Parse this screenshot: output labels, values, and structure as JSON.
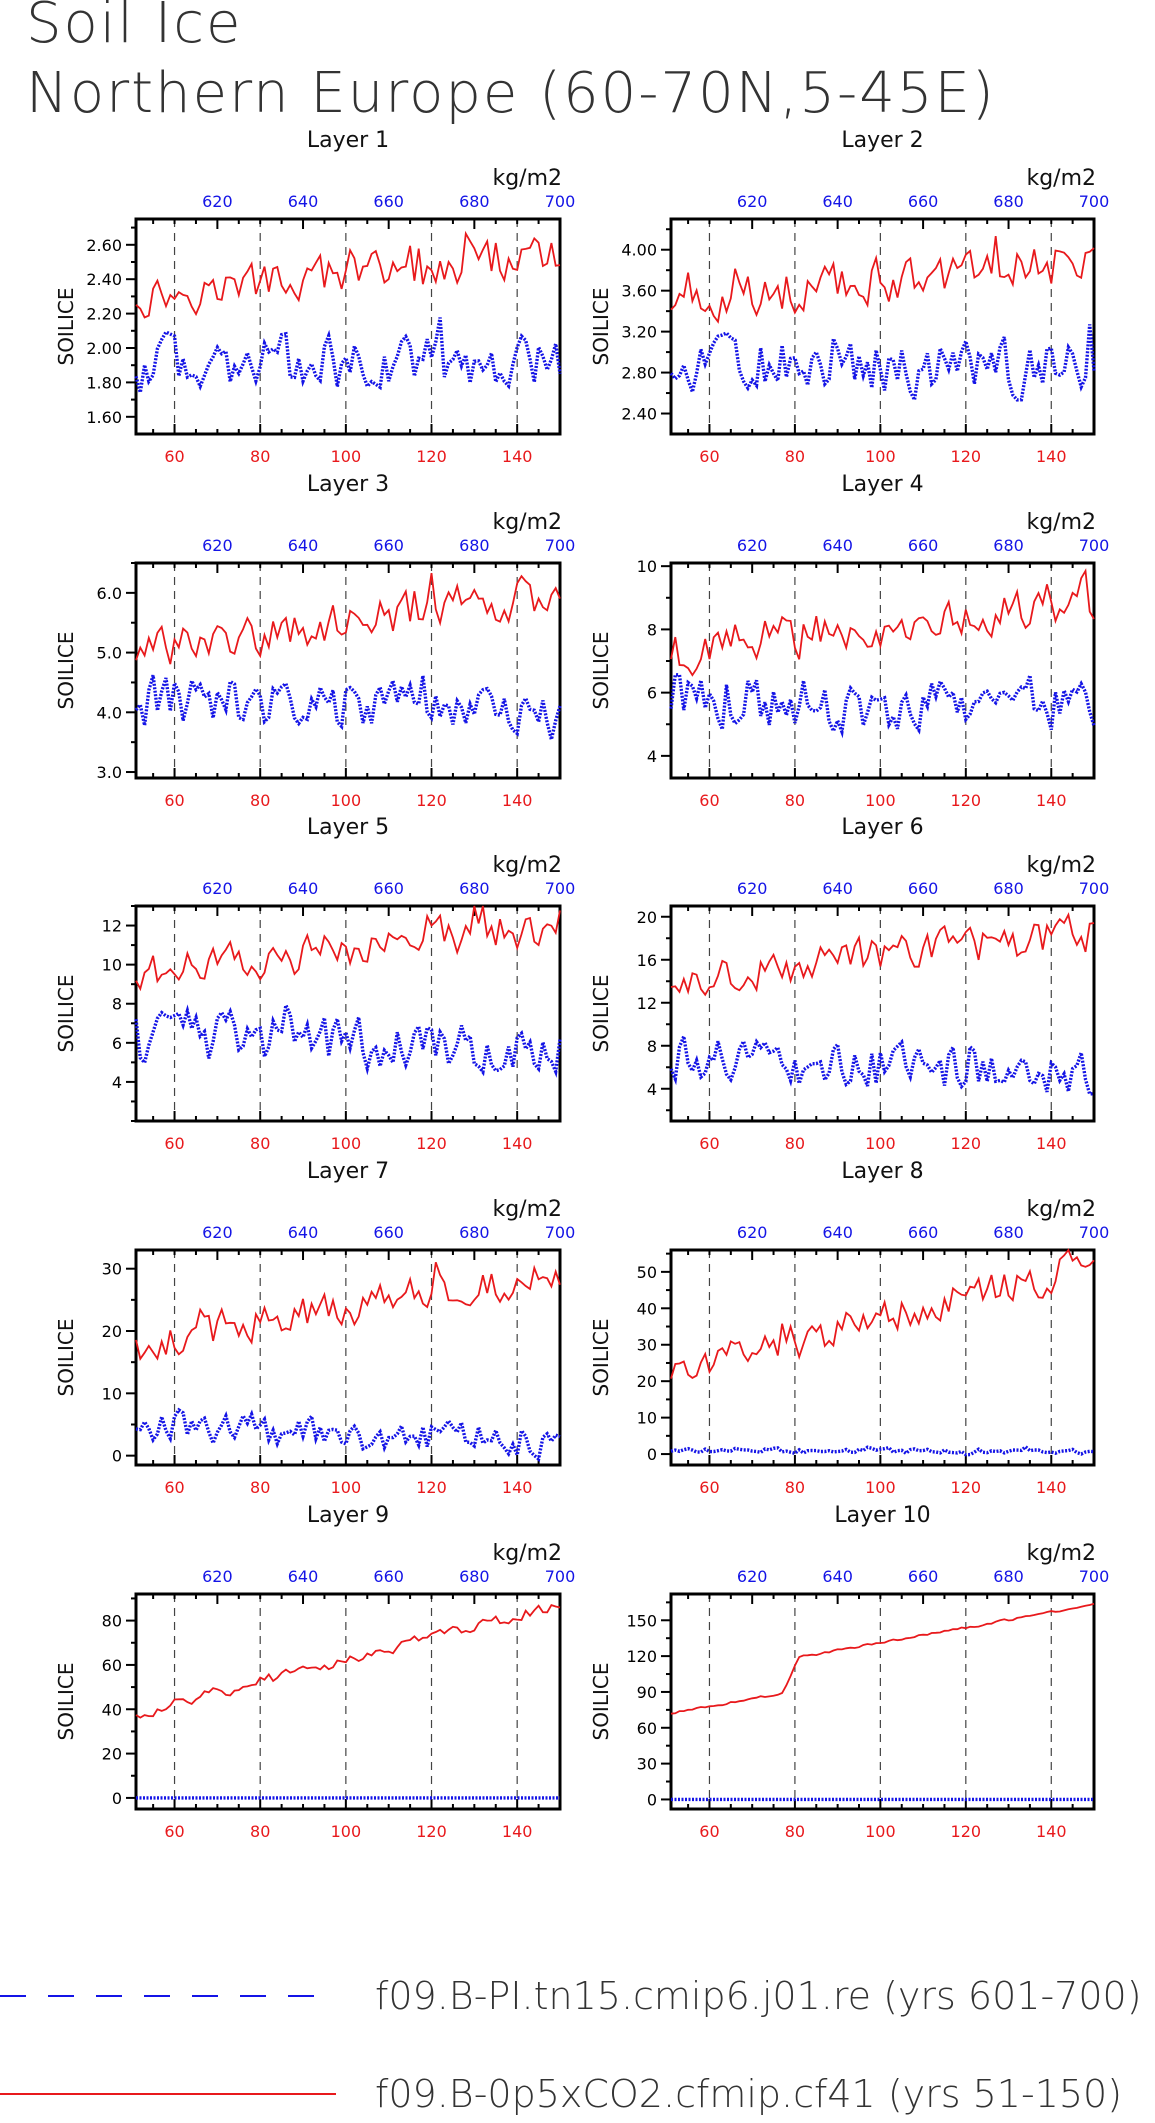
{
  "page": {
    "title_line1": "Soil Ice",
    "title_line2": "Northern Europe (60-70N,5-45E)",
    "unit_label": "kg/m2",
    "ylabel": "SOILICE",
    "colors": {
      "red": "#e8191c",
      "blue": "#1414e6"
    }
  },
  "legend": [
    {
      "label": "f09.B-PI.tn15.cmip6.j01.re (yrs 601-700)",
      "color": "#1414e6",
      "style": "long-dash"
    },
    {
      "label": "f09.B-0p5xCO2.cfmip.cf41 (yrs 51-150)",
      "color": "#e8191c",
      "style": "solid"
    }
  ],
  "chart_data": [
    {
      "type": "line",
      "title": "Layer 1",
      "xlabel": "",
      "ylabel": "SOILICE",
      "x_bottom": {
        "range": [
          51,
          150
        ],
        "ticks": [
          60,
          80,
          100,
          120,
          140
        ],
        "color": "#e8191c"
      },
      "x_top": {
        "range": [
          601,
          700
        ],
        "ticks": [
          620,
          640,
          660,
          680,
          700
        ],
        "color": "#1414e6",
        "unit": "kg/m2"
      },
      "ylim": [
        1.5,
        2.75
      ],
      "yticks": [
        "1.60",
        "1.80",
        "2.00",
        "2.20",
        "2.40",
        "2.60"
      ],
      "ytick_values": [
        1.6,
        1.8,
        2.0,
        2.2,
        2.4,
        2.6
      ],
      "grid": "vertical dashed at bottom-axis ticks",
      "series": [
        {
          "name": "f09.B-0p5xCO2.cfmip.cf41 (yrs 51-150)",
          "color": "#e8191c",
          "axis": "bottom",
          "mean_start": 2.3,
          "mean_end": 2.55,
          "amplitude": 0.12
        },
        {
          "name": "f09.B-PI.tn15.cmip6.j01.re (yrs 601-700)",
          "color": "#1414e6",
          "axis": "top",
          "mean_start": 1.9,
          "mean_end": 1.9,
          "amplitude": 0.16
        }
      ]
    },
    {
      "type": "line",
      "title": "Layer 2",
      "xlabel": "",
      "ylabel": "SOILICE",
      "x_bottom": {
        "range": [
          51,
          150
        ],
        "ticks": [
          60,
          80,
          100,
          120,
          140
        ],
        "color": "#e8191c"
      },
      "x_top": {
        "range": [
          601,
          700
        ],
        "ticks": [
          620,
          640,
          660,
          680,
          700
        ],
        "color": "#1414e6",
        "unit": "kg/m2"
      },
      "ylim": [
        2.2,
        4.3
      ],
      "yticks": [
        "2.40",
        "2.80",
        "3.20",
        "3.60",
        "4.00"
      ],
      "ytick_values": [
        2.4,
        2.8,
        3.2,
        3.6,
        4.0
      ],
      "grid": "vertical dashed at bottom-axis ticks",
      "series": [
        {
          "name": "f09.B-0p5xCO2.cfmip.cf41 (yrs 51-150)",
          "color": "#e8191c",
          "axis": "bottom",
          "mean_start": 3.5,
          "mean_end": 3.9,
          "amplitude": 0.22
        },
        {
          "name": "f09.B-PI.tn15.cmip6.j01.re (yrs 601-700)",
          "color": "#1414e6",
          "axis": "top",
          "mean_start": 2.9,
          "mean_end": 2.85,
          "amplitude": 0.28
        }
      ]
    },
    {
      "type": "line",
      "title": "Layer 3",
      "xlabel": "",
      "ylabel": "SOILICE",
      "x_bottom": {
        "range": [
          51,
          150
        ],
        "ticks": [
          60,
          80,
          100,
          120,
          140
        ],
        "color": "#e8191c"
      },
      "x_top": {
        "range": [
          601,
          700
        ],
        "ticks": [
          620,
          640,
          660,
          680,
          700
        ],
        "color": "#1414e6",
        "unit": "kg/m2"
      },
      "ylim": [
        2.9,
        6.5
      ],
      "yticks": [
        "3.0",
        "4.0",
        "5.0",
        "6.0"
      ],
      "ytick_values": [
        3.0,
        4.0,
        5.0,
        6.0
      ],
      "grid": "vertical dashed at bottom-axis ticks",
      "series": [
        {
          "name": "f09.B-0p5xCO2.cfmip.cf41 (yrs 51-150)",
          "color": "#e8191c",
          "axis": "bottom",
          "mean_start": 5.0,
          "mean_end": 6.0,
          "amplitude": 0.35
        },
        {
          "name": "f09.B-PI.tn15.cmip6.j01.re (yrs 601-700)",
          "color": "#1414e6",
          "axis": "top",
          "mean_start": 4.2,
          "mean_end": 4.0,
          "amplitude": 0.45
        }
      ]
    },
    {
      "type": "line",
      "title": "Layer 4",
      "xlabel": "",
      "ylabel": "SOILICE",
      "x_bottom": {
        "range": [
          51,
          150
        ],
        "ticks": [
          60,
          80,
          100,
          120,
          140
        ],
        "color": "#e8191c"
      },
      "x_top": {
        "range": [
          601,
          700
        ],
        "ticks": [
          620,
          640,
          660,
          680,
          700
        ],
        "color": "#1414e6",
        "unit": "kg/m2"
      },
      "ylim": [
        3.3,
        10.1
      ],
      "yticks": [
        "4",
        "6",
        "8",
        "10"
      ],
      "ytick_values": [
        4,
        6,
        8,
        10
      ],
      "grid": "vertical dashed at bottom-axis ticks",
      "series": [
        {
          "name": "f09.B-0p5xCO2.cfmip.cf41 (yrs 51-150)",
          "color": "#e8191c",
          "axis": "bottom",
          "mean_start": 7.3,
          "mean_end": 9.0,
          "amplitude": 0.7
        },
        {
          "name": "f09.B-PI.tn15.cmip6.j01.re (yrs 601-700)",
          "color": "#1414e6",
          "axis": "top",
          "mean_start": 5.8,
          "mean_end": 5.6,
          "amplitude": 0.9
        }
      ]
    },
    {
      "type": "line",
      "title": "Layer 5",
      "xlabel": "",
      "ylabel": "SOILICE",
      "x_bottom": {
        "range": [
          51,
          150
        ],
        "ticks": [
          60,
          80,
          100,
          120,
          140
        ],
        "color": "#e8191c"
      },
      "x_top": {
        "range": [
          601,
          700
        ],
        "ticks": [
          620,
          640,
          660,
          680,
          700
        ],
        "color": "#1414e6",
        "unit": "kg/m2"
      },
      "ylim": [
        2.0,
        13.0
      ],
      "yticks": [
        "4",
        "6",
        "8",
        "10",
        "12"
      ],
      "ytick_values": [
        4,
        6,
        8,
        10,
        12
      ],
      "grid": "vertical dashed at bottom-axis ticks",
      "series": [
        {
          "name": "f09.B-0p5xCO2.cfmip.cf41 (yrs 51-150)",
          "color": "#e8191c",
          "axis": "bottom",
          "mean_start": 9.5,
          "mean_end": 12.0,
          "amplitude": 1.0
        },
        {
          "name": "f09.B-PI.tn15.cmip6.j01.re (yrs 601-700)",
          "color": "#1414e6",
          "axis": "top",
          "mean_start": 6.3,
          "mean_end": 5.8,
          "amplitude": 1.3
        }
      ]
    },
    {
      "type": "line",
      "title": "Layer 6",
      "xlabel": "",
      "ylabel": "SOILICE",
      "x_bottom": {
        "range": [
          51,
          150
        ],
        "ticks": [
          60,
          80,
          100,
          120,
          140
        ],
        "color": "#e8191c"
      },
      "x_top": {
        "range": [
          601,
          700
        ],
        "ticks": [
          620,
          640,
          660,
          680,
          700
        ],
        "color": "#1414e6",
        "unit": "kg/m2"
      },
      "ylim": [
        1.0,
        21.0
      ],
      "yticks": [
        "4",
        "8",
        "12",
        "16",
        "20"
      ],
      "ytick_values": [
        4,
        8,
        12,
        16,
        20
      ],
      "grid": "vertical dashed at bottom-axis ticks",
      "series": [
        {
          "name": "f09.B-0p5xCO2.cfmip.cf41 (yrs 51-150)",
          "color": "#e8191c",
          "axis": "bottom",
          "mean_start": 14.0,
          "mean_end": 18.5,
          "amplitude": 1.8
        },
        {
          "name": "f09.B-PI.tn15.cmip6.j01.re (yrs 601-700)",
          "color": "#1414e6",
          "axis": "top",
          "mean_start": 6.5,
          "mean_end": 5.5,
          "amplitude": 2.2
        }
      ]
    },
    {
      "type": "line",
      "title": "Layer 7",
      "xlabel": "",
      "ylabel": "SOILICE",
      "x_bottom": {
        "range": [
          51,
          150
        ],
        "ticks": [
          60,
          80,
          100,
          120,
          140
        ],
        "color": "#e8191c"
      },
      "x_top": {
        "range": [
          601,
          700
        ],
        "ticks": [
          620,
          640,
          660,
          680,
          700
        ],
        "color": "#1414e6",
        "unit": "kg/m2"
      },
      "ylim": [
        -1.5,
        33.0
      ],
      "yticks": [
        "0",
        "10",
        "20",
        "30"
      ],
      "ytick_values": [
        0,
        10,
        20,
        30
      ],
      "grid": "vertical dashed at bottom-axis ticks",
      "series": [
        {
          "name": "f09.B-0p5xCO2.cfmip.cf41 (yrs 51-150)",
          "color": "#e8191c",
          "axis": "bottom",
          "mean_start": 18.0,
          "mean_end": 29.5,
          "amplitude": 3.0
        },
        {
          "name": "f09.B-PI.tn15.cmip6.j01.re (yrs 601-700)",
          "color": "#1414e6",
          "axis": "top",
          "mean_start": 5.0,
          "mean_end": 2.5,
          "amplitude": 2.6
        }
      ]
    },
    {
      "type": "line",
      "title": "Layer 8",
      "xlabel": "",
      "ylabel": "SOILICE",
      "x_bottom": {
        "range": [
          51,
          150
        ],
        "ticks": [
          60,
          80,
          100,
          120,
          140
        ],
        "color": "#e8191c"
      },
      "x_top": {
        "range": [
          601,
          700
        ],
        "ticks": [
          620,
          640,
          660,
          680,
          700
        ],
        "color": "#1414e6",
        "unit": "kg/m2"
      },
      "ylim": [
        -3.0,
        56.0
      ],
      "yticks": [
        "0",
        "10",
        "20",
        "30",
        "40",
        "50"
      ],
      "ytick_values": [
        0,
        10,
        20,
        30,
        40,
        50
      ],
      "grid": "vertical dashed at bottom-axis ticks",
      "series": [
        {
          "name": "f09.B-0p5xCO2.cfmip.cf41 (yrs 51-150)",
          "color": "#e8191c",
          "axis": "bottom",
          "mean_start": 22.0,
          "mean_end": 52.0,
          "amplitude": 5.0
        },
        {
          "name": "f09.B-PI.tn15.cmip6.j01.re (yrs 601-700)",
          "color": "#1414e6",
          "axis": "top",
          "mean_start": 1.0,
          "mean_end": 0.7,
          "amplitude": 0.8
        }
      ]
    },
    {
      "type": "line",
      "title": "Layer 9",
      "xlabel": "",
      "ylabel": "SOILICE",
      "x_bottom": {
        "range": [
          51,
          150
        ],
        "ticks": [
          60,
          80,
          100,
          120,
          140
        ],
        "color": "#e8191c"
      },
      "x_top": {
        "range": [
          601,
          700
        ],
        "ticks": [
          620,
          640,
          660,
          680,
          700
        ],
        "color": "#1414e6",
        "unit": "kg/m2"
      },
      "ylim": [
        -5.0,
        92.0
      ],
      "yticks": [
        "0",
        "20",
        "40",
        "60",
        "80"
      ],
      "ytick_values": [
        0,
        20,
        40,
        60,
        80
      ],
      "grid": "vertical dashed at bottom-axis ticks",
      "series": [
        {
          "name": "f09.B-0p5xCO2.cfmip.cf41 (yrs 51-150)",
          "color": "#e8191c",
          "axis": "bottom",
          "mean_start": 38.0,
          "mean_end": 87.0,
          "amplitude": 2.5
        },
        {
          "name": "f09.B-PI.tn15.cmip6.j01.re (yrs 601-700)",
          "color": "#1414e6",
          "axis": "top",
          "mean_start": 0.0,
          "mean_end": 0.0,
          "amplitude": 0.0
        }
      ]
    },
    {
      "type": "line",
      "title": "Layer 10",
      "xlabel": "",
      "ylabel": "SOILICE",
      "x_bottom": {
        "range": [
          51,
          150
        ],
        "ticks": [
          60,
          80,
          100,
          120,
          140
        ],
        "color": "#e8191c"
      },
      "x_top": {
        "range": [
          601,
          700
        ],
        "ticks": [
          620,
          640,
          660,
          680,
          700
        ],
        "color": "#1414e6",
        "unit": "kg/m2"
      },
      "ylim": [
        -8.0,
        172.0
      ],
      "yticks": [
        "0",
        "30",
        "60",
        "90",
        "120",
        "150"
      ],
      "ytick_values": [
        0,
        30,
        60,
        90,
        120,
        150
      ],
      "grid": "vertical dashed at bottom-axis ticks",
      "series": [
        {
          "name": "f09.B-0p5xCO2.cfmip.cf41 (yrs 51-150)",
          "color": "#e8191c",
          "axis": "bottom",
          "mean_start": 72.0,
          "mean_end": 163.0,
          "amplitude": 1.0,
          "step": {
            "at_x": 77,
            "rise": 28
          }
        },
        {
          "name": "f09.B-PI.tn15.cmip6.j01.re (yrs 601-700)",
          "color": "#1414e6",
          "axis": "top",
          "mean_start": 0.0,
          "mean_end": 0.0,
          "amplitude": 0.0
        }
      ]
    }
  ]
}
